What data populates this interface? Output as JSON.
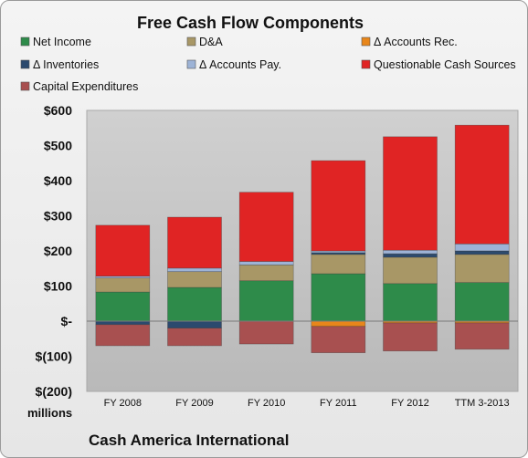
{
  "chart_data": {
    "type": "bar",
    "stacked": true,
    "title": "Free Cash Flow Components",
    "company": "Cash America International",
    "unit_label": "millions",
    "ylim": [
      -200,
      600
    ],
    "yticks": [
      -200,
      -100,
      0,
      100,
      200,
      300,
      400,
      500,
      600
    ],
    "ytick_labels": [
      "$(200)",
      "$(100)",
      "$-",
      "$100",
      "$200",
      "$300",
      "$400",
      "$500",
      "$600"
    ],
    "categories": [
      "FY 2008",
      "FY 2009",
      "FY 2010",
      "FY 2011",
      "FY 2012",
      "TTM 3-2013"
    ],
    "legend_position": "top",
    "grid": false,
    "series": [
      {
        "name": "Net Income",
        "color": "#2e8b4a",
        "values": [
          83,
          96,
          115,
          135,
          107,
          110
        ]
      },
      {
        "name": "D&A",
        "color": "#a89766",
        "values": [
          40,
          45,
          45,
          55,
          75,
          80
        ]
      },
      {
        "name": "Δ Accounts Rec.",
        "color": "#e8861a",
        "values": [
          0,
          0,
          0,
          -15,
          -5,
          -5
        ]
      },
      {
        "name": "Δ Inventories",
        "color": "#2c4a6e",
        "values": [
          -10,
          -20,
          0,
          5,
          10,
          10
        ]
      },
      {
        "name": "Δ Accounts Pay.",
        "color": "#9db3d6",
        "values": [
          5,
          10,
          10,
          5,
          10,
          20
        ]
      },
      {
        "name": "Questionable Cash Sources",
        "color": "#e02424",
        "values": [
          145,
          145,
          197,
          257,
          323,
          338
        ]
      },
      {
        "name": "Capital Expenditures",
        "color": "#a85050",
        "values": [
          -60,
          -50,
          -65,
          -75,
          -80,
          -75
        ]
      }
    ]
  }
}
